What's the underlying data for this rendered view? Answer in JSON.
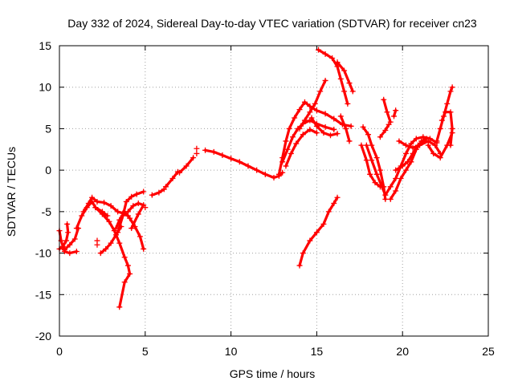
{
  "chart_data": {
    "type": "scatter",
    "title": "Day 332 of 2024, Sidereal Day-to-day VTEC variation (SDTVAR) for receiver cn23",
    "xlabel": "GPS time / hours",
    "ylabel": "SDTVAR / TECUs",
    "xlim": [
      0,
      25
    ],
    "ylim": [
      -20,
      15
    ],
    "x_ticks": [
      0,
      5,
      10,
      15,
      20,
      25
    ],
    "y_ticks": [
      -20,
      -15,
      -10,
      -5,
      0,
      5,
      10,
      15
    ],
    "grid": true,
    "marker": "+",
    "color": "#ff0000",
    "series": [
      {
        "name": "s1",
        "points": [
          [
            0.0,
            -9.5
          ],
          [
            0.2,
            -9.2
          ],
          [
            0.4,
            -8.5
          ],
          [
            0.5,
            -7.5
          ],
          [
            0.45,
            -6.5
          ]
        ]
      },
      {
        "name": "s2",
        "points": [
          [
            0.0,
            -7.3
          ],
          [
            0.1,
            -8.5
          ],
          [
            0.3,
            -9.8
          ],
          [
            0.6,
            -10.0
          ],
          [
            1.0,
            -9.8
          ]
        ]
      },
      {
        "name": "s3",
        "points": [
          [
            0.3,
            -9.6
          ],
          [
            0.6,
            -9.0
          ],
          [
            0.9,
            -8.3
          ],
          [
            1.1,
            -7.0
          ]
        ]
      },
      {
        "name": "s4",
        "points": [
          [
            1.0,
            -7.0
          ],
          [
            1.3,
            -5.5
          ],
          [
            1.6,
            -4.5
          ],
          [
            1.9,
            -3.8
          ],
          [
            2.1,
            -4.5
          ],
          [
            2.5,
            -5.0
          ],
          [
            2.8,
            -5.5
          ]
        ]
      },
      {
        "name": "s5",
        "points": [
          [
            1.4,
            -5.0
          ],
          [
            1.7,
            -4.0
          ],
          [
            1.9,
            -3.3
          ],
          [
            2.2,
            -3.8
          ],
          [
            2.6,
            -3.9
          ],
          [
            3.0,
            -4.3
          ],
          [
            3.4,
            -5.0
          ],
          [
            3.7,
            -5.2
          ],
          [
            4.0,
            -5.5
          ]
        ]
      },
      {
        "name": "s6",
        "points": [
          [
            2.4,
            -10.0
          ],
          [
            2.7,
            -9.5
          ],
          [
            3.0,
            -8.8
          ],
          [
            3.3,
            -7.8
          ],
          [
            3.6,
            -6.8
          ]
        ]
      },
      {
        "name": "s7",
        "points": [
          [
            2.1,
            -4.5
          ],
          [
            2.5,
            -5.3
          ],
          [
            2.9,
            -6.2
          ],
          [
            3.2,
            -7.3
          ],
          [
            3.5,
            -8.8
          ],
          [
            3.8,
            -10.5
          ],
          [
            4.0,
            -11.5
          ],
          [
            4.1,
            -12.5
          ],
          [
            3.8,
            -13.5
          ],
          [
            3.5,
            -16.5
          ]
        ]
      },
      {
        "name": "s8",
        "points": [
          [
            3.3,
            -7.0
          ],
          [
            3.5,
            -6.0
          ],
          [
            3.8,
            -5.0
          ],
          [
            4.1,
            -5.8
          ],
          [
            4.4,
            -6.8
          ],
          [
            4.7,
            -8.0
          ],
          [
            4.9,
            -9.5
          ]
        ]
      },
      {
        "name": "s9",
        "points": [
          [
            3.4,
            -7.5
          ],
          [
            3.7,
            -5.5
          ],
          [
            3.9,
            -3.8
          ],
          [
            4.2,
            -3.2
          ],
          [
            4.5,
            -2.9
          ],
          [
            4.9,
            -2.6
          ]
        ]
      },
      {
        "name": "s10",
        "points": [
          [
            4.0,
            -5.0
          ],
          [
            4.3,
            -4.3
          ],
          [
            4.6,
            -4.0
          ],
          [
            4.9,
            -4.2
          ],
          [
            4.6,
            -5.3
          ],
          [
            4.2,
            -7.0
          ]
        ]
      },
      {
        "name": "s11",
        "points": [
          [
            5.4,
            -3.0
          ],
          [
            5.8,
            -2.7
          ],
          [
            6.1,
            -2.3
          ]
        ]
      },
      {
        "name": "s12",
        "points": [
          [
            6.2,
            -2.0
          ],
          [
            6.6,
            -1.0
          ],
          [
            6.9,
            -0.2
          ]
        ]
      },
      {
        "name": "s13",
        "points": [
          [
            7.0,
            -0.3
          ],
          [
            7.4,
            0.5
          ],
          [
            7.8,
            1.5
          ]
        ]
      },
      {
        "name": "s14",
        "points": [
          [
            8.5,
            2.4
          ],
          [
            9.0,
            2.2
          ],
          [
            9.5,
            1.8
          ],
          [
            10.0,
            1.4
          ],
          [
            10.5,
            1.0
          ],
          [
            11.0,
            0.5
          ],
          [
            11.5,
            0.0
          ],
          [
            12.0,
            -0.5
          ],
          [
            12.5,
            -0.9
          ],
          [
            12.8,
            -0.7
          ],
          [
            13.0,
            -0.3
          ]
        ]
      },
      {
        "name": "s15",
        "points": [
          [
            12.8,
            -0.5
          ],
          [
            13.0,
            1.5
          ],
          [
            13.2,
            3.5
          ],
          [
            13.4,
            5.0
          ],
          [
            13.7,
            6.3
          ],
          [
            14.0,
            7.3
          ],
          [
            14.3,
            8.2
          ],
          [
            14.6,
            7.7
          ],
          [
            15.0,
            7.2
          ],
          [
            15.5,
            6.8
          ],
          [
            16.0,
            6.2
          ],
          [
            16.5,
            5.5
          ],
          [
            17.0,
            5.3
          ]
        ]
      },
      {
        "name": "s16",
        "points": [
          [
            13.0,
            1.0
          ],
          [
            13.3,
            2.5
          ],
          [
            13.6,
            4.0
          ],
          [
            13.9,
            5.0
          ],
          [
            14.2,
            5.6
          ],
          [
            14.6,
            6.0
          ],
          [
            15.0,
            5.6
          ],
          [
            15.5,
            5.2
          ],
          [
            16.0,
            4.9
          ]
        ]
      },
      {
        "name": "s17",
        "points": [
          [
            13.2,
            0.5
          ],
          [
            13.5,
            2.0
          ],
          [
            13.8,
            3.2
          ],
          [
            14.2,
            4.3
          ],
          [
            14.6,
            4.9
          ],
          [
            15.0,
            4.5
          ]
        ]
      },
      {
        "name": "s18",
        "points": [
          [
            14.0,
            5.0
          ],
          [
            14.3,
            6.0
          ],
          [
            14.6,
            7.0
          ],
          [
            14.9,
            8.0
          ],
          [
            15.2,
            9.5
          ],
          [
            15.5,
            10.8
          ]
        ]
      },
      {
        "name": "s19",
        "points": [
          [
            14.7,
            6.3
          ],
          [
            15.0,
            5.3
          ],
          [
            15.4,
            4.5
          ],
          [
            15.8,
            4.2
          ],
          [
            16.2,
            4.4
          ]
        ]
      },
      {
        "name": "s20",
        "points": [
          [
            15.1,
            14.5
          ],
          [
            15.5,
            14.0
          ],
          [
            15.9,
            13.5
          ],
          [
            16.2,
            12.5
          ],
          [
            16.4,
            11.0
          ],
          [
            16.6,
            9.5
          ],
          [
            16.8,
            8.0
          ]
        ]
      },
      {
        "name": "s21",
        "points": [
          [
            16.2,
            13.0
          ],
          [
            16.6,
            12.0
          ],
          [
            16.9,
            10.5
          ],
          [
            17.1,
            9.5
          ]
        ]
      },
      {
        "name": "s22",
        "points": [
          [
            16.4,
            6.5
          ],
          [
            16.7,
            5.0
          ],
          [
            16.9,
            3.5
          ]
        ]
      },
      {
        "name": "s23",
        "points": [
          [
            14.0,
            -11.5
          ],
          [
            14.2,
            -10.0
          ],
          [
            14.6,
            -8.5
          ],
          [
            15.0,
            -7.5
          ],
          [
            15.4,
            -6.5
          ],
          [
            15.7,
            -5.0
          ],
          [
            16.0,
            -4.0
          ],
          [
            16.2,
            -3.3
          ]
        ]
      },
      {
        "name": "s24",
        "points": [
          [
            17.7,
            5.2
          ],
          [
            18.0,
            4.3
          ],
          [
            18.2,
            3.0
          ],
          [
            18.5,
            1.5
          ],
          [
            18.7,
            0.0
          ],
          [
            18.9,
            -2.0
          ],
          [
            19.0,
            -3.5
          ]
        ]
      },
      {
        "name": "s25",
        "points": [
          [
            17.9,
            3.0
          ],
          [
            18.2,
            1.2
          ],
          [
            18.5,
            -0.5
          ],
          [
            18.8,
            -2.0
          ],
          [
            19.0,
            -3.0
          ],
          [
            19.3,
            -2.0
          ],
          [
            19.6,
            -1.0
          ],
          [
            19.9,
            0.5
          ],
          [
            20.2,
            2.0
          ],
          [
            20.5,
            3.2
          ],
          [
            20.8,
            3.8
          ],
          [
            21.2,
            4.0
          ],
          [
            21.6,
            3.8
          ],
          [
            22.0,
            3.3
          ]
        ]
      },
      {
        "name": "s26",
        "points": [
          [
            17.6,
            3.0
          ],
          [
            17.9,
            1.2
          ],
          [
            18.1,
            -0.5
          ],
          [
            18.4,
            -1.5
          ],
          [
            18.7,
            -2.0
          ]
        ]
      },
      {
        "name": "s27",
        "points": [
          [
            18.7,
            4.0
          ],
          [
            19.0,
            4.8
          ],
          [
            19.2,
            5.5
          ]
        ]
      },
      {
        "name": "s28",
        "points": [
          [
            18.9,
            8.5
          ],
          [
            19.1,
            7.0
          ],
          [
            19.3,
            5.8
          ]
        ]
      },
      {
        "name": "s29",
        "points": [
          [
            19.5,
            6.5
          ],
          [
            19.6,
            7.2
          ]
        ]
      },
      {
        "name": "s30",
        "points": [
          [
            19.3,
            -3.5
          ],
          [
            19.6,
            -2.5
          ],
          [
            19.9,
            -1.0
          ],
          [
            20.2,
            0.0
          ],
          [
            20.5,
            1.0
          ],
          [
            20.8,
            2.5
          ],
          [
            21.1,
            3.5
          ],
          [
            21.4,
            3.8
          ]
        ]
      },
      {
        "name": "s31",
        "points": [
          [
            19.6,
            0.0
          ],
          [
            20.0,
            0.5
          ],
          [
            20.3,
            1.0
          ],
          [
            20.6,
            2.0
          ],
          [
            20.9,
            3.0
          ],
          [
            21.3,
            3.5
          ]
        ]
      },
      {
        "name": "s32",
        "points": [
          [
            19.8,
            3.5
          ],
          [
            20.2,
            3.0
          ],
          [
            20.6,
            2.7
          ],
          [
            21.0,
            3.0
          ],
          [
            21.5,
            3.5
          ],
          [
            21.9,
            3.0
          ],
          [
            22.2,
            2.0
          ]
        ]
      },
      {
        "name": "s33",
        "points": [
          [
            21.5,
            3.0
          ],
          [
            21.8,
            2.0
          ],
          [
            22.2,
            1.5
          ],
          [
            22.6,
            3.0
          ],
          [
            22.9,
            4.5
          ]
        ]
      },
      {
        "name": "s34",
        "points": [
          [
            22.0,
            3.5
          ],
          [
            22.2,
            5.0
          ],
          [
            22.4,
            6.5
          ],
          [
            22.6,
            8.0
          ],
          [
            22.8,
            9.5
          ],
          [
            22.9,
            10.0
          ]
        ]
      },
      {
        "name": "s35",
        "points": [
          [
            22.3,
            6.0
          ],
          [
            22.5,
            7.0
          ],
          [
            22.8,
            7.0
          ],
          [
            22.9,
            5.0
          ],
          [
            22.8,
            3.0
          ]
        ]
      }
    ],
    "isolated_points": [
      [
        2.2,
        -8.5
      ],
      [
        2.2,
        -9.0
      ],
      [
        8.0,
        2.6
      ],
      [
        8.0,
        2.0
      ],
      [
        5.0,
        -4.5
      ]
    ]
  }
}
